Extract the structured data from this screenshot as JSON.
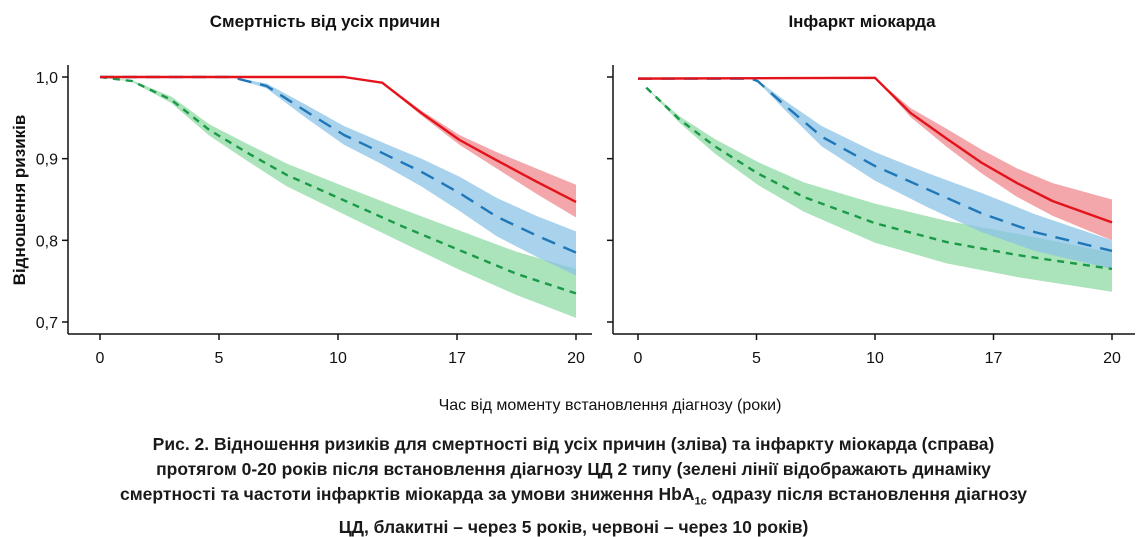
{
  "chart_data": [
    {
      "type": "line",
      "title": "Смертність від усіх причин",
      "ylabel": "Відношення ризиків",
      "xlabel": "Час від моменту встановлення діагнозу (роки)",
      "x_ticks": [
        0,
        5,
        10,
        17,
        20
      ],
      "y_ticks": [
        "1,0",
        "0,9",
        "0,8",
        "0,7"
      ],
      "y_tick_values": [
        1.0,
        0.9,
        0.8,
        0.7
      ],
      "ylim": [
        0.7,
        1.0
      ],
      "series": [
        {
          "name": "green",
          "color": "#1a9a48",
          "band": "#8fd9a4",
          "dash": "short",
          "x": [
            0,
            1.35,
            3,
            4.6,
            6.2,
            7.85,
            10.35,
            13.8,
            17.06,
            18.5,
            20
          ],
          "y": [
            1,
            0.995,
            0.972,
            0.935,
            0.907,
            0.88,
            0.849,
            0.817,
            0.788,
            0.759,
            0.735
          ],
          "lo": [
            1,
            0.994,
            0.968,
            0.928,
            0.897,
            0.866,
            0.832,
            0.797,
            0.764,
            0.733,
            0.705
          ],
          "hi": [
            1,
            0.996,
            0.976,
            0.942,
            0.918,
            0.894,
            0.866,
            0.838,
            0.812,
            0.786,
            0.765
          ]
        },
        {
          "name": "blue",
          "color": "#1f77b8",
          "band": "#8cc3e6",
          "dash": "long",
          "x": [
            0,
            5.5,
            7,
            8.65,
            10.35,
            12.6,
            14.9,
            17.06,
            18.0,
            19.0,
            20
          ],
          "y": [
            1,
            1,
            0.989,
            0.958,
            0.929,
            0.907,
            0.884,
            0.858,
            0.829,
            0.806,
            0.785
          ],
          "lo": [
            1,
            1,
            0.986,
            0.95,
            0.917,
            0.893,
            0.866,
            0.836,
            0.805,
            0.78,
            0.757
          ],
          "hi": [
            1,
            1,
            0.992,
            0.966,
            0.94,
            0.92,
            0.9,
            0.878,
            0.852,
            0.83,
            0.811
          ]
        },
        {
          "name": "red",
          "color": "#e3131b",
          "band": "#ef8a8f",
          "dash": "solid",
          "x": [
            0,
            10.35,
            12.6,
            14.9,
            17.06,
            18.0,
            19.0,
            20
          ],
          "y": [
            1,
            1,
            0.993,
            0.956,
            0.923,
            0.898,
            0.872,
            0.847
          ],
          "lo": [
            1,
            1,
            0.992,
            0.953,
            0.917,
            0.888,
            0.857,
            0.828
          ],
          "hi": [
            1,
            1,
            0.994,
            0.959,
            0.929,
            0.908,
            0.888,
            0.868
          ]
        }
      ]
    },
    {
      "type": "line",
      "title": "Інфаркт міокарда",
      "x_ticks": [
        0,
        5,
        10,
        17,
        20
      ],
      "y_tick_values": [
        1.0,
        0.9,
        0.8,
        0.7
      ],
      "ylim": [
        0.7,
        1.0
      ],
      "series": [
        {
          "name": "green",
          "color": "#1a9a48",
          "band": "#8fd9a4",
          "dash": "short",
          "x": [
            0.35,
            1.75,
            3.25,
            5.05,
            7,
            10,
            14.2,
            17.6,
            20
          ],
          "y": [
            0.987,
            0.948,
            0.915,
            0.882,
            0.853,
            0.821,
            0.798,
            0.782,
            0.765
          ],
          "lo": [
            0.987,
            0.944,
            0.906,
            0.868,
            0.835,
            0.797,
            0.772,
            0.755,
            0.737
          ],
          "hi": [
            0.987,
            0.952,
            0.924,
            0.896,
            0.871,
            0.845,
            0.824,
            0.808,
            0.785
          ]
        },
        {
          "name": "blue",
          "color": "#1f77b8",
          "band": "#8cc3e6",
          "dash": "long",
          "x": [
            0,
            4.75,
            5.05,
            6.25,
            7.75,
            10,
            13.15,
            16.3,
            18.05,
            20
          ],
          "y": [
            0.998,
            0.998,
            0.995,
            0.964,
            0.927,
            0.891,
            0.862,
            0.833,
            0.81,
            0.787
          ],
          "lo": [
            0.998,
            0.998,
            0.994,
            0.958,
            0.915,
            0.873,
            0.84,
            0.81,
            0.787,
            0.765
          ],
          "hi": [
            0.998,
            0.998,
            0.996,
            0.97,
            0.94,
            0.908,
            0.882,
            0.858,
            0.832,
            0.8
          ]
        },
        {
          "name": "red",
          "color": "#e3131b",
          "band": "#ef8a8f",
          "dash": "solid",
          "x": [
            0,
            10,
            12.1,
            14.2,
            16.3,
            17.6,
            18.5,
            20
          ],
          "y": [
            0.998,
            0.999,
            0.956,
            0.925,
            0.895,
            0.87,
            0.848,
            0.822
          ],
          "lo": [
            0.998,
            0.999,
            0.951,
            0.915,
            0.882,
            0.853,
            0.83,
            0.8
          ],
          "hi": [
            0.998,
            0.999,
            0.962,
            0.937,
            0.911,
            0.888,
            0.87,
            0.85
          ]
        }
      ]
    }
  ],
  "caption": {
    "line1": "Рис. 2. Відношення ризиків для смертності від усіх причин (зліва) та інфаркту міокарда (справа)",
    "line2": "протягом 0-20 років після встановлення діагнозу ЦД 2 типу (зелені лінії відображають динаміку",
    "line3a": "смертності та частоти інфарктів міокарда за умови зниження HbA",
    "line3sub": "1c",
    "line3b": " одразу після встановлення діагнозу",
    "line4": "ЦД, блакитні – через 5 років, червоні – через 10 років)"
  }
}
